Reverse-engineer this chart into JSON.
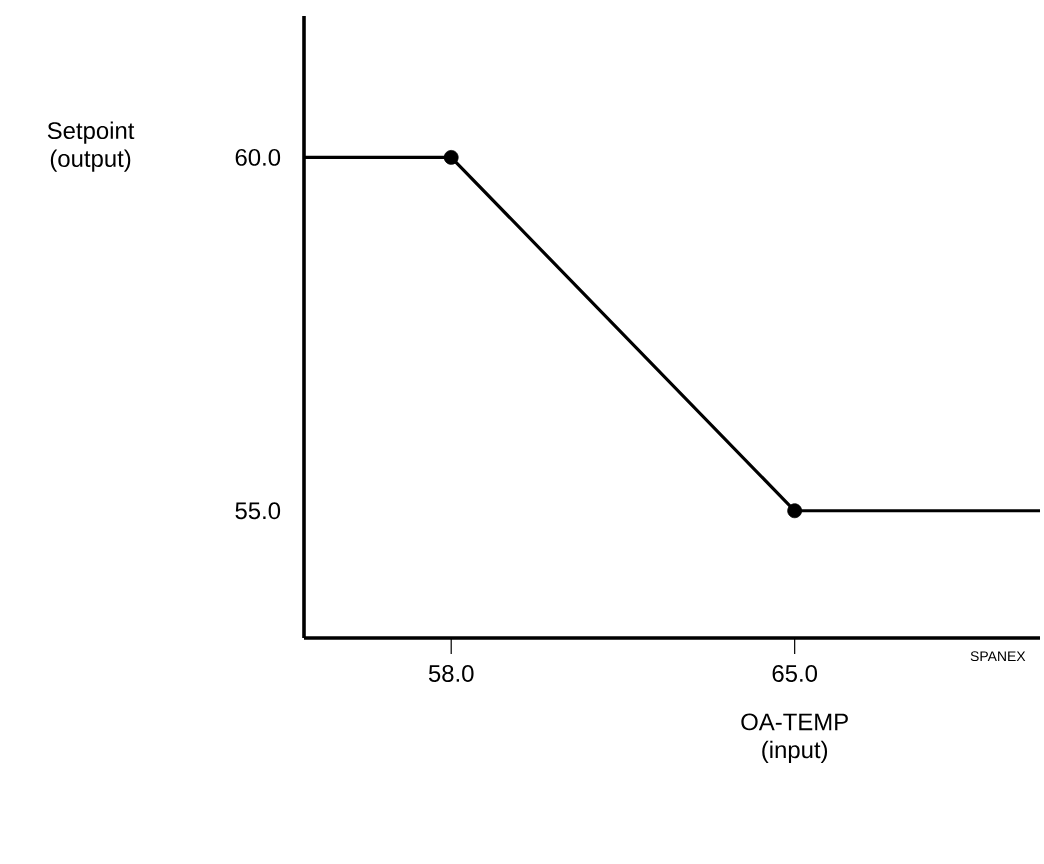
{
  "chart_data": {
    "type": "line",
    "xlabel": "OA-TEMP (input)",
    "ylabel": "Setpoint (output)",
    "x": [
      55,
      58,
      65,
      70
    ],
    "series": [
      {
        "color": "#000000",
        "marker": "none",
        "line_style": "solid",
        "values": [
          60,
          60,
          55,
          55
        ]
      },
      {
        "type": "scatter",
        "color": "#000000",
        "marker": "circle",
        "x": [
          58,
          65
        ],
        "values": [
          60,
          55
        ]
      }
    ],
    "xlim": [
      55,
      70
    ],
    "ylim": [
      53.2,
      62
    ],
    "xticks": [
      {
        "value": 58,
        "label": "58.0"
      },
      {
        "value": 65,
        "label": "65.0"
      }
    ],
    "yticks": [
      {
        "value": 55,
        "label": "55.0"
      },
      {
        "value": 60,
        "label": "60.0"
      }
    ],
    "annotations": [
      "SPANEX"
    ]
  }
}
